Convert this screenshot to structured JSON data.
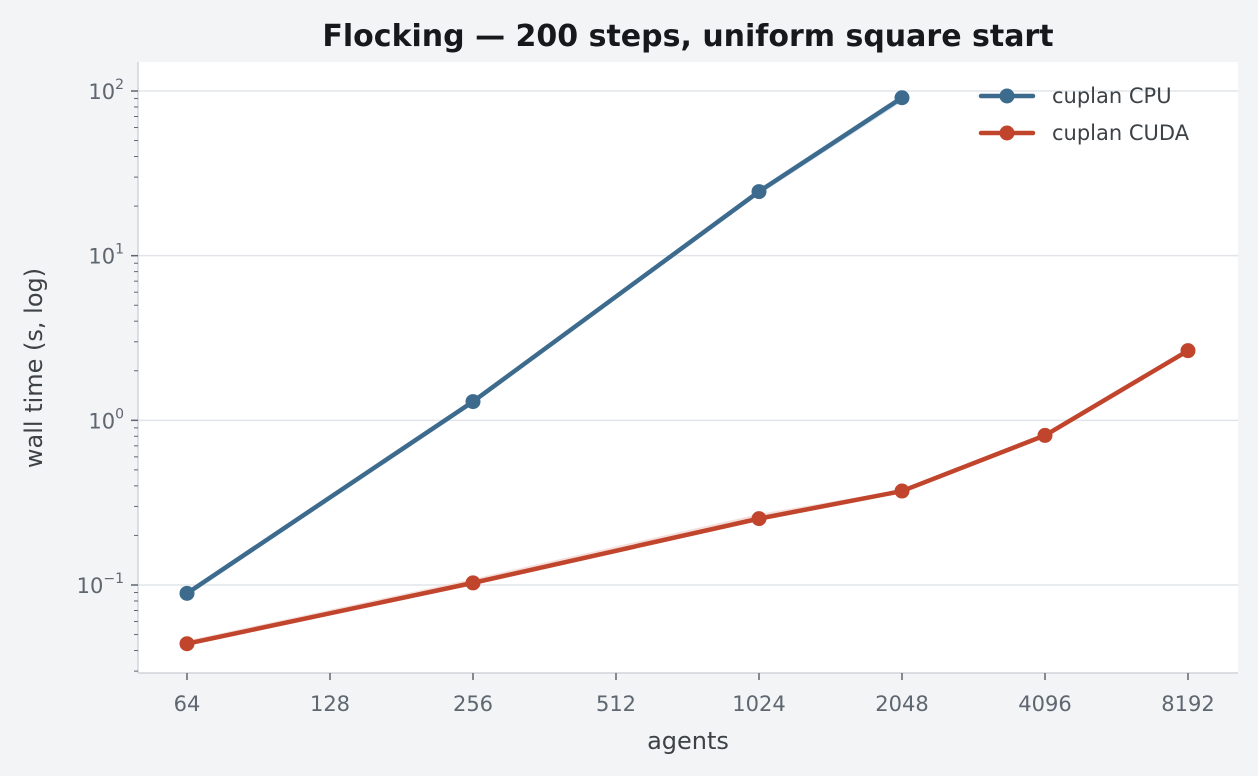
{
  "chart_data": {
    "type": "line",
    "title": "Flocking — 200 steps, uniform square start",
    "xlabel": "agents",
    "ylabel": "wall time (s, log)",
    "x_scale": "log2",
    "y_scale": "log10",
    "x_ticks": [
      64,
      128,
      256,
      512,
      1024,
      2048,
      4096,
      8192
    ],
    "x_tick_labels": [
      "64",
      "128",
      "256",
      "512",
      "1024",
      "2048",
      "4096",
      "8192"
    ],
    "y_ticks": [
      {
        "value": 0.1,
        "base": "10",
        "exp": "−1"
      },
      {
        "value": 1,
        "base": "10",
        "exp": "0"
      },
      {
        "value": 10,
        "base": "10",
        "exp": "1"
      },
      {
        "value": 100,
        "base": "10",
        "exp": "2"
      }
    ],
    "xlim": [
      53,
      10000
    ],
    "ylim": [
      0.03,
      150
    ],
    "grid": "horizontal",
    "legend_position": "top-right",
    "series": [
      {
        "name": "cuplan CPU",
        "color": "#3d6b8e",
        "band_color": "#c9dbed",
        "x": [
          64,
          256,
          1024,
          2048
        ],
        "values": [
          0.089,
          1.3,
          24.5,
          91
        ],
        "lower": [
          0.087,
          1.27,
          23.5,
          86
        ],
        "upper": [
          0.091,
          1.33,
          25.5,
          95
        ]
      },
      {
        "name": "cuplan CUDA",
        "color": "#c0452c",
        "band_color": "#f1d3cc",
        "x": [
          64,
          256,
          1024,
          2048,
          4096,
          8192
        ],
        "values": [
          0.044,
          0.103,
          0.253,
          0.372,
          0.81,
          2.65
        ],
        "lower": [
          0.043,
          0.1,
          0.245,
          0.365,
          0.8,
          2.6
        ],
        "upper": [
          0.046,
          0.109,
          0.27,
          0.38,
          0.82,
          2.7
        ]
      }
    ]
  }
}
